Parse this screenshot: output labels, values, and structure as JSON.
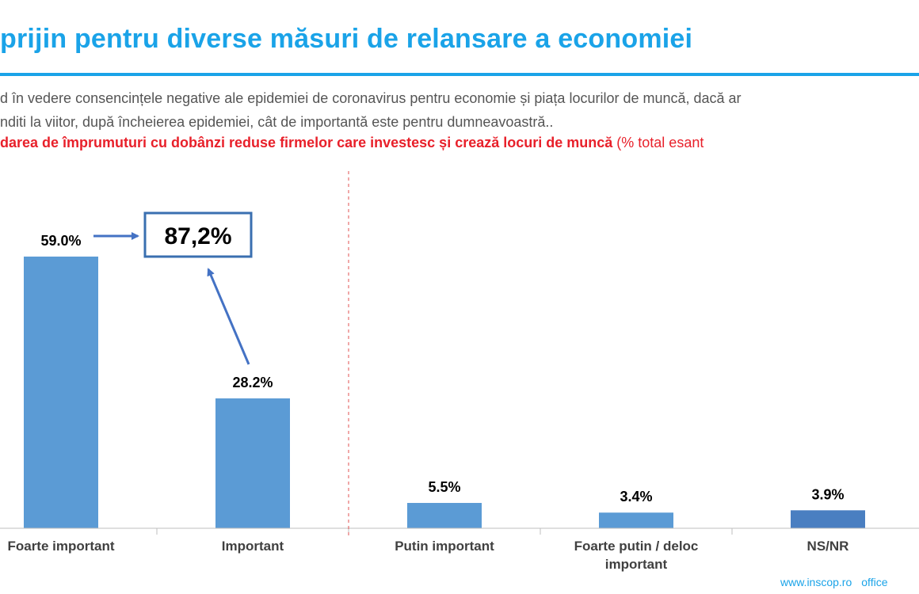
{
  "header": {
    "title": "prijin pentru diverse măsuri de relansare a economiei",
    "question_line1": "d în vedere consencințele negative ale epidemiei de coronavirus pentru economie și piața locurilor de muncă, dacă ar",
    "question_line2": "nditi la viitor, după încheierea epidemiei, cât de importantă este pentru dumneavoastră..",
    "question_line3_bold": "darea de împrumuturi cu dobânzi reduse firmelor care investesc și crează locuri de muncă",
    "question_line3_note": " (% total esant"
  },
  "chart_data": {
    "type": "bar",
    "categories": [
      "Foarte important",
      "Important",
      "Putin important",
      "Foarte putin / deloc important",
      "NS/NR"
    ],
    "category_lines": [
      [
        "Foarte important"
      ],
      [
        "Important"
      ],
      [
        "Putin important"
      ],
      [
        "Foarte putin / deloc",
        "important"
      ],
      [
        "NS/NR"
      ]
    ],
    "values": [
      59.0,
      28.2,
      5.5,
      3.4,
      3.9
    ],
    "data_labels": [
      "59.0%",
      "28.2%",
      "5.5%",
      "3.4%",
      "3.9%"
    ],
    "ylim": [
      0,
      70
    ],
    "grid": false,
    "colors": [
      "#5b9bd5",
      "#5b9bd5",
      "#5b9bd5",
      "#5b9bd5",
      "#4a7fc1"
    ],
    "annotation": {
      "text": "87,2%",
      "box_border_color": "#3a6fb0",
      "arrow_color": "#4472c4"
    },
    "divider_color": "#e05050"
  },
  "footer": {
    "site": "www.inscop.ro",
    "email_fragment": "office"
  }
}
